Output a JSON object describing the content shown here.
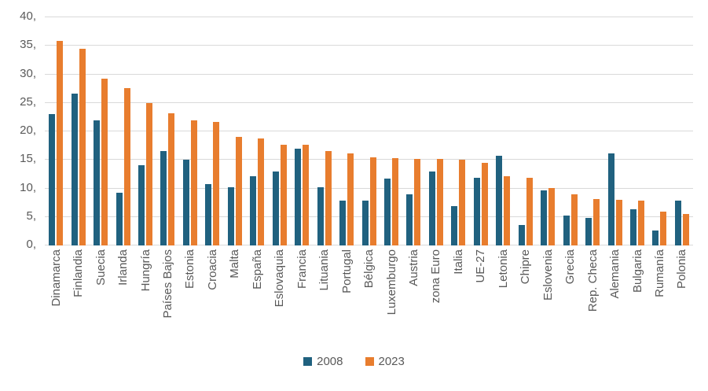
{
  "chart_data": {
    "type": "bar",
    "title": "",
    "xlabel": "",
    "ylabel": "",
    "ylim": [
      0,
      40
    ],
    "ytick_interval": 5,
    "grid": true,
    "legend_position": "bottom",
    "colors": {
      "series_2008": "#20617f",
      "series_2023": "#e87d2e",
      "gridline": "#d9d9d9",
      "axis_text": "#595959"
    },
    "yticks": [
      {
        "value": 40,
        "label": "40,"
      },
      {
        "value": 35,
        "label": "35,"
      },
      {
        "value": 30,
        "label": "30,"
      },
      {
        "value": 25,
        "label": "25,"
      },
      {
        "value": 20,
        "label": "20,"
      },
      {
        "value": 15,
        "label": "15,"
      },
      {
        "value": 10,
        "label": "10,"
      },
      {
        "value": 5,
        "label": "5,"
      },
      {
        "value": 0,
        "label": "0,"
      }
    ],
    "categories": [
      "Dinamarca",
      "Finlandia",
      "Suecia",
      "Irlanda",
      "Hungría",
      "Países Bajos",
      "Estonia",
      "Croacia",
      "Malta",
      "España",
      "Eslovaquia",
      "Francia",
      "Lituania",
      "Portugal",
      "Bélgica",
      "Luxemburgo",
      "Austria",
      "zona Euro",
      "Italia",
      "UE-27",
      "Letonia",
      "Chipre",
      "Eslovenia",
      "Grecia",
      "Rep. Checa",
      "Alemania",
      "Bulgaria",
      "Rumanía",
      "Polonia"
    ],
    "series": [
      {
        "name": "2008",
        "color": "#20617f",
        "values": [
          23.1,
          26.6,
          21.9,
          9.2,
          14.0,
          16.5,
          15.1,
          10.8,
          10.2,
          12.2,
          12.9,
          16.9,
          10.2,
          7.9,
          7.9,
          11.7,
          8.9,
          12.9,
          6.9,
          11.8,
          15.7,
          3.6,
          9.6,
          5.2,
          4.8,
          16.1,
          6.4,
          2.6,
          7.9
        ]
      },
      {
        "name": "2023",
        "color": "#e87d2e",
        "values": [
          35.8,
          34.5,
          29.2,
          27.6,
          24.9,
          23.2,
          21.9,
          21.7,
          19.1,
          18.7,
          17.7,
          17.6,
          16.5,
          16.2,
          15.5,
          15.3,
          15.2,
          15.2,
          15.1,
          14.5,
          12.2,
          11.8,
          10.1,
          8.9,
          8.2,
          8.0,
          7.9,
          5.9,
          5.5
        ]
      }
    ]
  }
}
